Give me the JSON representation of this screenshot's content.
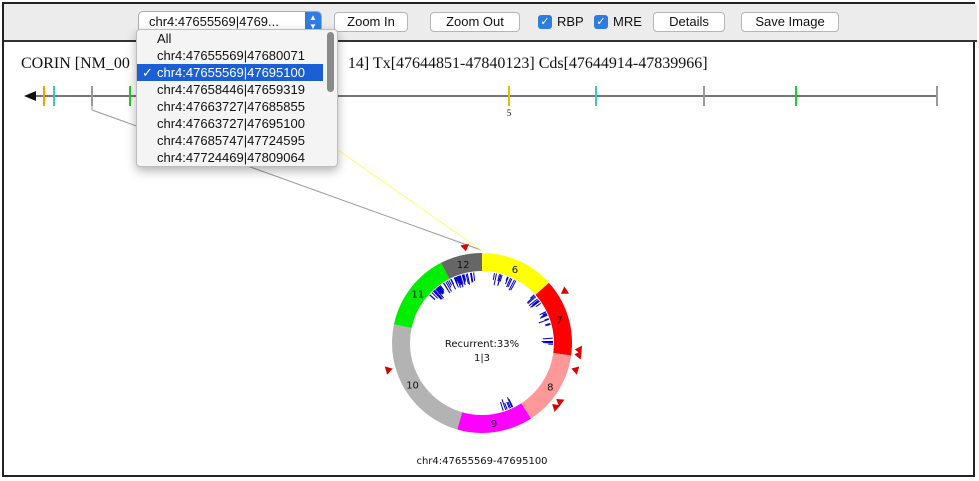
{
  "toolbar": {
    "region_select": "chr4:47655569|4769...",
    "zoom_in": "Zoom In",
    "zoom_out": "Zoom Out",
    "rbp_label": "RBP",
    "mre_label": "MRE",
    "details": "Details",
    "save_image": "Save Image"
  },
  "dropdown": {
    "items": [
      "All",
      "chr4:47655569|47680071",
      "chr4:47655569|47695100",
      "chr4:47658446|47659319",
      "chr4:47663727|47685855",
      "chr4:47663727|47695100",
      "chr4:47685747|47724595",
      "chr4:47724469|47809064"
    ],
    "selected_index": 2,
    "check": "✓"
  },
  "gene_info": {
    "prefix": "CORIN [NM_00",
    "suffix": "14] Tx[47644851-47840123] Cds[47644914-47839966]"
  },
  "track": {
    "exon_label": "5"
  },
  "circle": {
    "center_line1": "Recurrent:33%",
    "center_line2": "1|3",
    "caption": "chr4:47655569-47695100",
    "segments": [
      {
        "label": "6",
        "color": "#ffff00"
      },
      {
        "label": "7",
        "color": "#ff0000"
      },
      {
        "label": "8",
        "color": "#ff9999"
      },
      {
        "label": "9",
        "color": "#ff00ff"
      },
      {
        "label": "10",
        "color": "#b3b3b3"
      },
      {
        "label": "11",
        "color": "#00ee00"
      },
      {
        "label": "12",
        "color": "#666666"
      }
    ]
  },
  "colors": {
    "accent": "#2f7de1",
    "selected": "#1a5fd6",
    "mre_tick": "#0000cc",
    "marker": "#dd0000"
  }
}
